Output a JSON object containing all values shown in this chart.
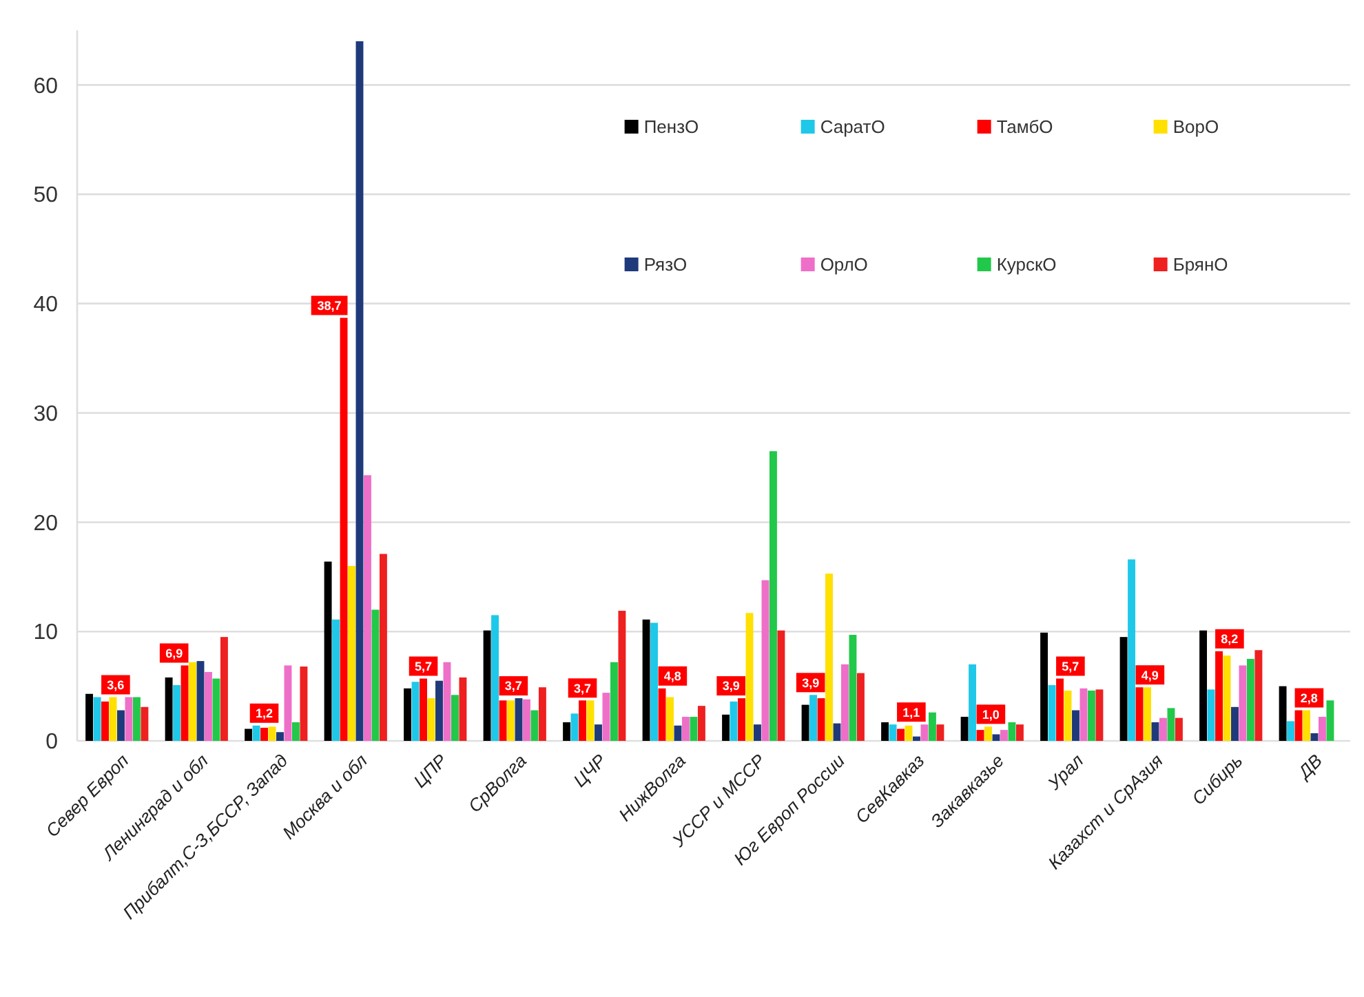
{
  "chart_data": {
    "type": "bar",
    "categories": [
      "Север Европ",
      "Ленинград и обл",
      "Прибалт,С-З,БССР, Запад",
      "Москва и обл",
      "ЦПР",
      "СрВолга",
      "ЦЧР",
      "НижВолга",
      "УССР и МССР",
      "Юг Европ России",
      "СевКавказ",
      "Закавказье",
      "Урал",
      "Казахст и СрАзия",
      "Сибирь",
      "ДВ"
    ],
    "series": [
      {
        "name": "ПензО",
        "color": "#000000",
        "values": [
          4.3,
          5.8,
          1.1,
          16.4,
          4.8,
          10.1,
          1.7,
          11.1,
          2.4,
          3.3,
          1.7,
          2.2,
          9.9,
          9.5,
          10.1,
          5.0
        ]
      },
      {
        "name": "СаратО",
        "color": "#1fc8e8",
        "values": [
          4.0,
          5.1,
          1.4,
          11.1,
          5.4,
          11.5,
          2.5,
          10.8,
          3.6,
          4.2,
          1.5,
          7.0,
          5.1,
          16.6,
          4.7,
          1.8
        ]
      },
      {
        "name": "ТамбО",
        "color": "#ff0000",
        "values": [
          3.6,
          6.9,
          1.2,
          38.7,
          5.7,
          3.7,
          3.7,
          4.8,
          3.9,
          3.9,
          1.1,
          1.0,
          5.7,
          4.9,
          8.2,
          2.8
        ],
        "value_labels": [
          "3,6",
          "6,9",
          "1,2",
          "38,7",
          "5,7",
          "3,7",
          "3,7",
          "4,8",
          "3,9",
          "3,9",
          "1,1",
          "1,0",
          "5,7",
          "4,9",
          "8,2",
          "2,8"
        ]
      },
      {
        "name": "ВорО",
        "color": "#ffe000",
        "values": [
          4.0,
          7.2,
          1.3,
          16.0,
          3.9,
          3.7,
          3.7,
          4.0,
          11.7,
          15.3,
          1.4,
          1.3,
          4.6,
          4.9,
          7.8,
          2.8
        ]
      },
      {
        "name": "РязО",
        "color": "#1f3a7a",
        "values": [
          2.8,
          7.3,
          0.8,
          64,
          5.5,
          3.9,
          1.5,
          1.4,
          1.5,
          1.6,
          0.4,
          0.6,
          2.8,
          1.7,
          3.1,
          0.7
        ]
      },
      {
        "name": "ОрлО",
        "color": "#ee6fc8",
        "values": [
          4.0,
          6.3,
          6.9,
          24.3,
          7.2,
          3.8,
          4.4,
          2.2,
          14.7,
          7.0,
          1.5,
          1.0,
          4.8,
          2.1,
          6.9,
          2.2
        ]
      },
      {
        "name": "КурскО",
        "color": "#22c84a",
        "values": [
          4.0,
          5.7,
          1.7,
          12.0,
          4.2,
          2.8,
          7.2,
          2.2,
          26.5,
          9.7,
          2.6,
          1.7,
          4.6,
          3.0,
          7.5,
          3.7
        ]
      },
      {
        "name": "БрянО",
        "color": "#ee2020",
        "values": [
          3.1,
          9.5,
          6.8,
          17.1,
          5.8,
          4.9,
          11.9,
          3.2,
          10.1,
          6.2,
          1.5,
          1.5,
          4.7,
          2.1,
          8.3,
          null
        ]
      }
    ],
    "ylim": [
      0,
      65
    ],
    "yticks": [
      0,
      10,
      20,
      30,
      40,
      50,
      60
    ],
    "grid": "y",
    "legend": "top right"
  }
}
